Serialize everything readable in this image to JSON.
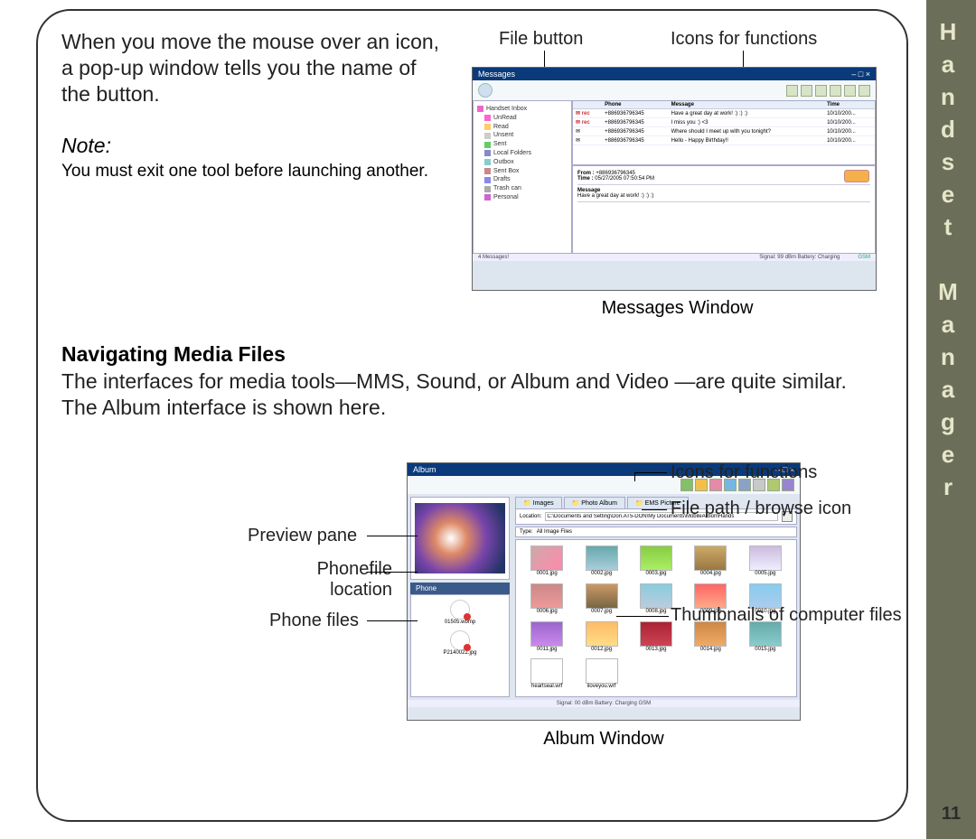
{
  "side": {
    "label": "Handset Manager",
    "page": "11"
  },
  "intro": {
    "text": "When you move the mouse over an icon, a pop-up window tells you the name of the button.",
    "note_label": "Note:",
    "note_body": "You must exit one tool before launching another."
  },
  "section": {
    "title": "Navigating Media Files",
    "body": "The interfaces for media tools—MMS, Sound, or Album and Video —are quite similar. The Album interface is shown here."
  },
  "messages": {
    "callout_file": "File button",
    "callout_icons": "Icons for functions",
    "caption": "Messages Window",
    "title": "Messages",
    "tree": {
      "root": "Handset Inbox",
      "items": [
        "UnRead",
        "Read",
        "Unsent",
        "Sent",
        "Local Folders",
        "Outbox",
        "Sent Box",
        "Drafts",
        "Trash can",
        "Personal"
      ]
    },
    "table": {
      "headers": [
        "",
        "Phone",
        "Message",
        "Time"
      ],
      "rows": [
        [
          "rec",
          "+886936796345",
          "Have a great day at work! :) :) :)",
          "10/10/200..."
        ],
        [
          "rec",
          "+886936796345",
          "I miss you :) <3",
          "10/10/200..."
        ],
        [
          "",
          "+886936796345",
          "Where should I meet up with you tonight?",
          "10/10/200..."
        ],
        [
          "",
          "+886936796345",
          "Hello - Happy Birthday!!",
          "10/10/200..."
        ]
      ]
    },
    "detail": {
      "from_label": "From :",
      "from": "+886936796345",
      "time_label": "Time :",
      "time": "05/27/2005 07:50:54 PM",
      "msg_label": "Message",
      "msg": "Have a great day at work! :) :) :)"
    },
    "status": {
      "left": "4 Messages!",
      "right": "Signal: 99 dBm Battery: Charging",
      "tag": "GSM"
    }
  },
  "album": {
    "title": "Album",
    "callouts": {
      "preview": "Preview pane",
      "phonefile": "Phonefile location",
      "phonefiles": "Phone  files",
      "icons": "Icons for functions",
      "path": "File path / browse icon",
      "thumbs": "Thumbnails of computer files"
    },
    "caption": "Album Window",
    "tabs": [
      "Images",
      "Photo Album",
      "EMS Picture"
    ],
    "path_label": "Location:",
    "path_value": "C:\\Documents and Setting\\Don.AT5-DON\\My Documents\\MobileAction\\Hands",
    "type_label": "Type:",
    "type_value": "All Image Files",
    "toolbar_colors": [
      "#84c06a",
      "#f2c04a",
      "#e48aa8",
      "#76b6e2",
      "#8aa2c8",
      "#c8c8c8",
      "#b0c870",
      "#9a84d0"
    ],
    "phone_side_label": "Phone",
    "phone_files": [
      "01505.wbmp",
      "P2140022.jpg"
    ],
    "thumbs": [
      {
        "name": "0001.jpg",
        "bg": "linear-gradient(135deg,#caa,#f8a)"
      },
      {
        "name": "0002.jpg",
        "bg": "linear-gradient(#6aa,#acd)"
      },
      {
        "name": "0003.jpg",
        "bg": "linear-gradient(#8c4,#ae6)"
      },
      {
        "name": "0004.jpg",
        "bg": "linear-gradient(#ca6,#974)"
      },
      {
        "name": "0005.jpg",
        "bg": "linear-gradient(#cbd,#eef)"
      },
      {
        "name": "0006.jpg",
        "bg": "linear-gradient(#c88,#e99)"
      },
      {
        "name": "0007.jpg",
        "bg": "linear-gradient(#c96,#764)"
      },
      {
        "name": "0008.jpg",
        "bg": "linear-gradient(#8cd,#bcd)"
      },
      {
        "name": "0009.jpg",
        "bg": "linear-gradient(#f66,#fa8)"
      },
      {
        "name": "0010.jpg",
        "bg": "linear-gradient(#8ce,#ace)"
      },
      {
        "name": "0011.jpg",
        "bg": "linear-gradient(#96c,#c8e)"
      },
      {
        "name": "0012.jpg",
        "bg": "linear-gradient(#fb6,#fd8)"
      },
      {
        "name": "0013.jpg",
        "bg": "linear-gradient(#a23,#c45)"
      },
      {
        "name": "0014.jpg",
        "bg": "linear-gradient(#c84,#ea6)"
      },
      {
        "name": "0015.jpg",
        "bg": "linear-gradient(#6aa,#8cc)"
      },
      {
        "name": "heartseal.wrf",
        "bg": "#fff"
      },
      {
        "name": "iloveyou.wrf",
        "bg": "#fff"
      }
    ],
    "status": "Signal: 00 dBm Battery: Charging    GSM"
  }
}
